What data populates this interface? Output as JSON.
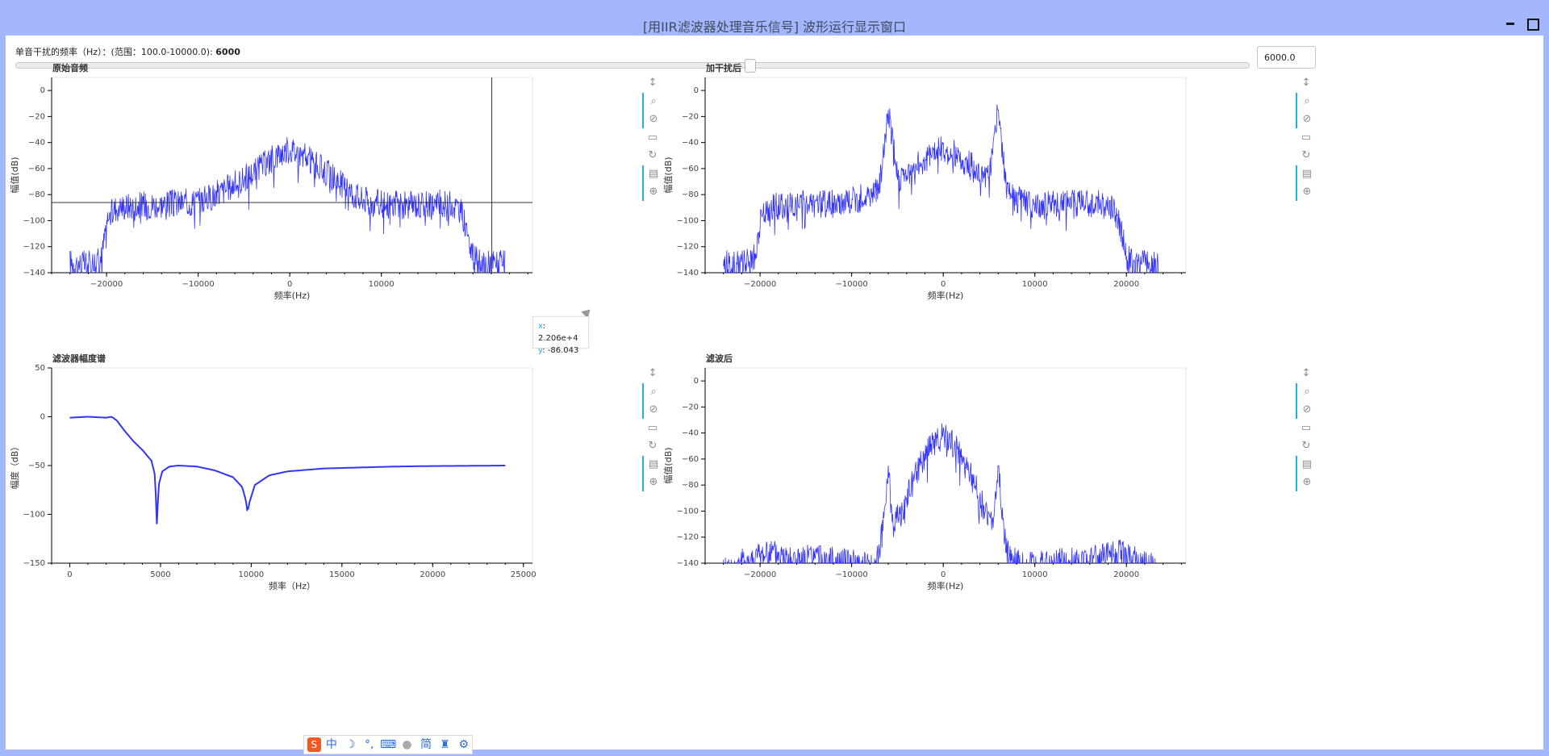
{
  "window": {
    "title": "[用IIR滤波器处理音乐信号] 波形运行显示窗口"
  },
  "slider": {
    "label_prefix": "单音干扰的频率（Hz）：(范围：100.0-10000.0): ",
    "value_text": "6000",
    "min": 100.0,
    "max": 10000.0,
    "value": 6000.0,
    "spin_value": "6000.0"
  },
  "plots": {
    "original": {
      "title": "原始音频",
      "xlabel": "频率(Hz)",
      "ylabel": "幅值(dB)",
      "xticks": [
        "−20000",
        "−10000",
        "0",
        "10000"
      ],
      "yticks": [
        "0",
        "−20",
        "−40",
        "−60",
        "−80",
        "−100",
        "−120",
        "−140"
      ]
    },
    "interfered": {
      "title": "加干扰后",
      "xlabel": "频率(Hz)",
      "ylabel": "幅值(dB)",
      "xticks": [
        "−20000",
        "−10000",
        "0",
        "10000",
        "20000"
      ],
      "yticks": [
        "0",
        "−20",
        "−40",
        "−60",
        "−80",
        "−100",
        "−120",
        "−140"
      ]
    },
    "filter": {
      "title": "滤波器幅度谱",
      "xlabel": "频率（Hz）",
      "ylabel": "幅度（dB）",
      "xticks": [
        "0",
        "5000",
        "10000",
        "15000",
        "20000",
        "25000"
      ],
      "yticks": [
        "50",
        "0",
        "−50",
        "−100",
        "−150"
      ]
    },
    "filtered": {
      "title": "滤波后",
      "xlabel": "频率(Hz)",
      "ylabel": "幅值(dB)",
      "xticks": [
        "−20000",
        "−10000",
        "0",
        "10000",
        "20000"
      ],
      "yticks": [
        "0",
        "−20",
        "−40",
        "−60",
        "−80",
        "−100",
        "−120",
        "−140"
      ]
    }
  },
  "tooltip": {
    "x_key": "x",
    "x_value": "2.206e+4",
    "y_key": "y",
    "y_value": "-86.043"
  },
  "colors": {
    "line": "#3333ff",
    "accent": "#26aae1",
    "background": "#a4b6fe"
  },
  "toolbar_icons": [
    "pan-icon",
    "box-zoom-icon",
    "wheel-zoom-icon",
    "save-icon",
    "reset-icon",
    "hover-icon",
    "crosshair-icon"
  ],
  "chart_data": [
    {
      "type": "line",
      "title": "原始音频",
      "xlabel": "频率(Hz)",
      "ylabel": "幅值(dB)",
      "xlim": [
        -26000,
        26500
      ],
      "ylim": [
        -140,
        10
      ],
      "x": [
        -24000,
        -22000,
        -20500,
        -20000,
        -19000,
        -17000,
        -15000,
        -13000,
        -11000,
        -9000,
        -7000,
        -5000,
        -3000,
        -1500,
        0,
        1500,
        3000,
        5000,
        7000,
        9000,
        11000,
        13000,
        15000,
        17000,
        18500,
        19500,
        20000,
        21000,
        22000,
        23500
      ],
      "series": [
        {
          "values": [
            -132,
            -134,
            -128,
            -100,
            -90,
            -88,
            -88,
            -87,
            -86,
            -83,
            -76,
            -68,
            -58,
            -50,
            -45,
            -50,
            -58,
            -68,
            -80,
            -86,
            -88,
            -88,
            -87,
            -87,
            -90,
            -108,
            -128,
            -135,
            -132,
            -134
          ]
        }
      ],
      "crosshair": {
        "x": 22060,
        "y": -86.043
      }
    },
    {
      "type": "line",
      "title": "加干扰后",
      "xlabel": "频率(Hz)",
      "ylabel": "幅值(dB)",
      "xlim": [
        -26000,
        26500
      ],
      "ylim": [
        -140,
        10
      ],
      "x": [
        -24000,
        -22000,
        -20500,
        -20000,
        -19000,
        -17000,
        -15000,
        -13000,
        -11000,
        -9000,
        -7000,
        -6000,
        -5000,
        -3000,
        -1500,
        0,
        1500,
        3000,
        5000,
        6000,
        7000,
        9000,
        11000,
        13000,
        15000,
        17000,
        18500,
        19500,
        20000,
        21000,
        22000,
        23500
      ],
      "series": [
        {
          "values": [
            -132,
            -134,
            -128,
            -100,
            -90,
            -88,
            -88,
            -87,
            -86,
            -83,
            -76,
            -15,
            -68,
            -58,
            -50,
            -45,
            -50,
            -58,
            -68,
            -15,
            -80,
            -86,
            -88,
            -88,
            -87,
            -87,
            -90,
            -108,
            -128,
            -135,
            -132,
            -134
          ]
        }
      ]
    },
    {
      "type": "line",
      "title": "滤波器幅度谱",
      "xlabel": "频率（Hz）",
      "ylabel": "幅度（dB）",
      "xlim": [
        -1000,
        25500
      ],
      "ylim": [
        -150,
        50
      ],
      "x": [
        0,
        1000,
        2000,
        2300,
        2600,
        3000,
        3500,
        4000,
        4500,
        4700,
        4800,
        4900,
        5100,
        5500,
        6000,
        7000,
        8000,
        9000,
        9500,
        9700,
        9800,
        9900,
        10200,
        11000,
        12000,
        14000,
        16000,
        18000,
        20000,
        22000,
        24000
      ],
      "series": [
        {
          "values": [
            -1,
            0,
            -1,
            0,
            -4,
            -14,
            -25,
            -34,
            -45,
            -60,
            -110,
            -70,
            -56,
            -51,
            -50,
            -51,
            -55,
            -62,
            -72,
            -85,
            -98,
            -88,
            -70,
            -60,
            -56,
            -53,
            -52,
            -51,
            -50.5,
            -50.3,
            -50
          ]
        }
      ]
    },
    {
      "type": "line",
      "title": "滤波后",
      "xlabel": "频率(Hz)",
      "ylabel": "幅值(dB)",
      "xlim": [
        -26000,
        26500
      ],
      "ylim": [
        -140,
        10
      ],
      "x": [
        -24000,
        -19000,
        -16000,
        -14000,
        -10000,
        -8000,
        -7000,
        -6500,
        -6000,
        -5500,
        -4500,
        -3000,
        -1500,
        0,
        1500,
        3000,
        4500,
        5500,
        6000,
        6500,
        7000,
        8000,
        10000,
        14000,
        16000,
        19000,
        23500
      ],
      "series": [
        {
          "values": [
            -145,
            -132,
            -138,
            -136,
            -140,
            -142,
            -132,
            -110,
            -65,
            -110,
            -100,
            -72,
            -52,
            -42,
            -52,
            -72,
            -100,
            -110,
            -65,
            -110,
            -132,
            -140,
            -142,
            -138,
            -138,
            -132,
            -145
          ]
        }
      ]
    }
  ]
}
